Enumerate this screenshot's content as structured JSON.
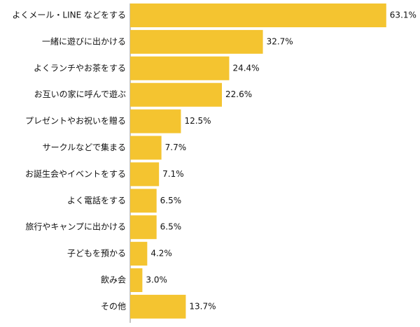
{
  "chart_data": {
    "type": "bar",
    "orientation": "horizontal",
    "categories": [
      "よくメール・LINE などをする",
      "一緒に遊びに出かける",
      "よくランチやお茶をする",
      "お互いの家に呼んで遊ぶ",
      "プレゼントやお祝いを贈る",
      "サークルなどで集まる",
      "お誕生会やイベントをする",
      "よく電話をする",
      "旅行やキャンプに出かける",
      "子どもを預かる",
      "飲み会",
      "その他"
    ],
    "values": [
      63.1,
      32.7,
      24.4,
      22.6,
      12.5,
      7.7,
      7.1,
      6.5,
      6.5,
      4.2,
      3.0,
      13.7
    ],
    "value_labels": [
      "63.1%",
      "32.7%",
      "24.4%",
      "22.6%",
      "12.5%",
      "7.7%",
      "7.1%",
      "6.5%",
      "6.5%",
      "4.2%",
      "3.0%",
      "13.7%"
    ],
    "xlim": [
      0,
      69
    ],
    "grid": false,
    "bar_color": "#f4c430",
    "axis_color": "#888888"
  }
}
